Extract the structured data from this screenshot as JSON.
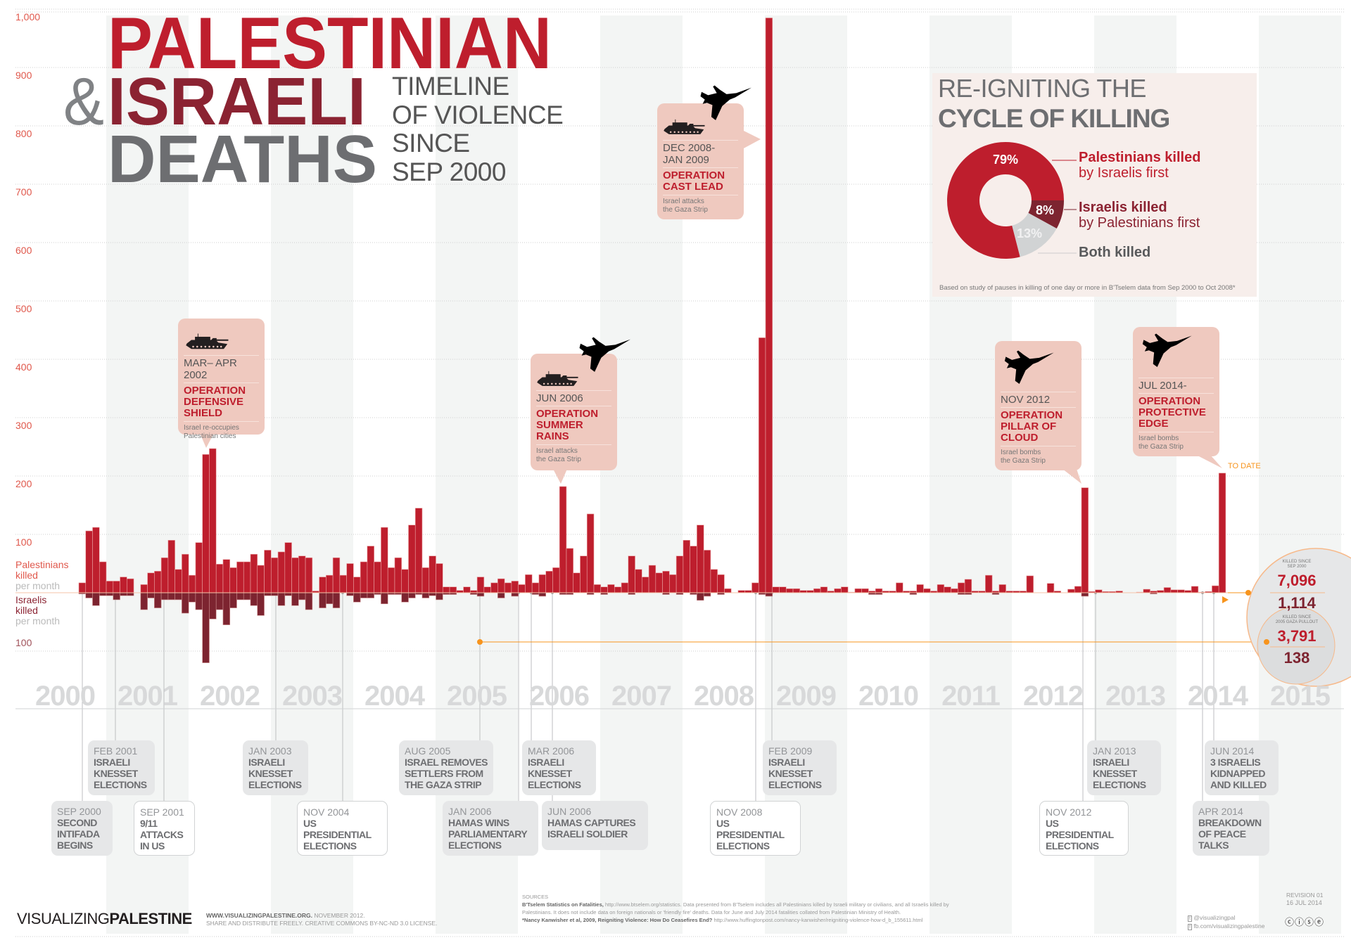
{
  "title": {
    "line1": "PALESTINIAN",
    "amp": "&",
    "line2": "ISRAELI",
    "line3": "DEATHS",
    "subtitle": [
      "TIMELINE",
      "OF VIOLENCE",
      "SINCE",
      "SEP 2000"
    ]
  },
  "colors": {
    "palestinian": "#be1e2d",
    "israeli": "#7d2430",
    "grey_text": "#6d6e71",
    "callout_bg": "#efc9bf",
    "accent_orange": "#f7941d",
    "both_killed": "#d1d3d4"
  },
  "chart_data": {
    "type": "bar",
    "start_month": "2000-09",
    "end_month": "2014-07",
    "interval": "month",
    "ylim": [
      -100,
      1000
    ],
    "grid": true,
    "y_tick_labels": [
      "1,000",
      "900",
      "800",
      "700",
      "600",
      "500",
      "400",
      "300",
      "200",
      "100"
    ],
    "y_tick_values": [
      1000,
      900,
      800,
      700,
      600,
      500,
      400,
      300,
      200,
      100
    ],
    "y_neg_tick_label": "100",
    "x_tick_labels": [
      "2000",
      "2001",
      "2002",
      "2003",
      "2004",
      "2005",
      "2006",
      "2007",
      "2008",
      "2009",
      "2010",
      "2011",
      "2012",
      "2013",
      "2014",
      "2015"
    ],
    "series": [
      {
        "name": "Palestinians killed per month",
        "label": "Palestinians\nkilled",
        "unit": "per month",
        "values": [
          17,
          106,
          112,
          53,
          20,
          20,
          27,
          24,
          0,
          14,
          34,
          37,
          60,
          90,
          40,
          66,
          30,
          86,
          237,
          247,
          49,
          57,
          43,
          53,
          53,
          66,
          47,
          73,
          60,
          70,
          86,
          60,
          63,
          60,
          3,
          27,
          30,
          60,
          30,
          50,
          27,
          53,
          80,
          53,
          112,
          43,
          60,
          40,
          116,
          145,
          43,
          63,
          50,
          10,
          10,
          4,
          10,
          4,
          27,
          10,
          17,
          24,
          17,
          20,
          14,
          31,
          17,
          31,
          37,
          43,
          182,
          76,
          34,
          63,
          135,
          14,
          10,
          14,
          10,
          17,
          63,
          40,
          27,
          47,
          34,
          37,
          31,
          63,
          90,
          80,
          116,
          73,
          40,
          31,
          7,
          0,
          4,
          4,
          17,
          437,
          985,
          10,
          10,
          7,
          7,
          4,
          4,
          7,
          10,
          3,
          7,
          10,
          1,
          7,
          7,
          3,
          7,
          3,
          3,
          17,
          3,
          3,
          14,
          7,
          3,
          14,
          10,
          7,
          17,
          23,
          3,
          3,
          30,
          3,
          14,
          3,
          3,
          3,
          29,
          0,
          0,
          16,
          3,
          0,
          6,
          11,
          180,
          2,
          5,
          2,
          2,
          3,
          0,
          0,
          1,
          6,
          3,
          4,
          9,
          5,
          5,
          4,
          11,
          1,
          2,
          12,
          205
        ]
      },
      {
        "name": "Israelis killed per month",
        "label": "Israelis\nkilled",
        "unit": "per month",
        "values": [
          2,
          9,
          22,
          5,
          5,
          12,
          5,
          5,
          0,
          29,
          9,
          26,
          12,
          12,
          12,
          35,
          16,
          29,
          120,
          45,
          29,
          55,
          26,
          12,
          12,
          22,
          39,
          5,
          5,
          22,
          5,
          22,
          12,
          29,
          0,
          26,
          19,
          26,
          0,
          5,
          16,
          9,
          9,
          3,
          19,
          3,
          3,
          16,
          9,
          3,
          9,
          5,
          12,
          3,
          3,
          0,
          0,
          3,
          6,
          0,
          0,
          9,
          0,
          6,
          0,
          0,
          3,
          6,
          0,
          0,
          3,
          3,
          0,
          0,
          3,
          0,
          3,
          0,
          0,
          0,
          3,
          0,
          0,
          0,
          0,
          3,
          0,
          3,
          0,
          3,
          13,
          6,
          0,
          3,
          0,
          0,
          0,
          0,
          0,
          3,
          6,
          0,
          0,
          0,
          0,
          0,
          0,
          0,
          0,
          0,
          0,
          0,
          0,
          0,
          0,
          3,
          3,
          0,
          0,
          0,
          0,
          3,
          0,
          0,
          0,
          0,
          0,
          0,
          3,
          3,
          0,
          0,
          0,
          3,
          0,
          0,
          0,
          0,
          0,
          0,
          0,
          0,
          0,
          0,
          0,
          0,
          6,
          0,
          0,
          0,
          0,
          0,
          0,
          0,
          0,
          0,
          2,
          0,
          0,
          0,
          0,
          0,
          0,
          0,
          0,
          0,
          0
        ]
      }
    ]
  },
  "callouts": [
    {
      "date": "MAR– APR 2002",
      "name": "OPERATION\nDEFENSIVE\nSHIELD",
      "desc": "Israel re-occupies\nPalestinian cities",
      "icons": [
        "tank-icon"
      ]
    },
    {
      "date": "JUN 2006",
      "name": "OPERATION\nSUMMER\nRAINS",
      "desc": "Israel attacks\nthe Gaza Strip",
      "icons": [
        "tank-icon",
        "fighter-jet-icon"
      ]
    },
    {
      "date": "DEC 2008-\nJAN 2009",
      "name": "OPERATION\nCAST LEAD",
      "desc": "Israel attacks\nthe Gaza Strip",
      "icons": [
        "tank-icon",
        "fighter-jet-icon"
      ]
    },
    {
      "date": "NOV 2012",
      "name": "OPERATION\nPILLAR OF\nCLOUD",
      "desc": "Israel bombs\nthe Gaza Strip",
      "icons": [
        "fighter-jet-icon"
      ]
    },
    {
      "date": "JUL 2014-",
      "name": "OPERATION\nPROTECTIVE\nEDGE",
      "desc": "Israel bombs\nthe Gaza Strip",
      "icons": [
        "fighter-jet-icon"
      ]
    }
  ],
  "to_date": "TO DATE",
  "events": [
    {
      "date": "SEP 2000",
      "title": "SECOND\nINTIFADA\nBEGINS"
    },
    {
      "date": "FEB 2001",
      "title": "ISRAELI\nKNESSET\nELECTIONS"
    },
    {
      "date": "SEP 2001",
      "title": "9/11\nATTACKS\nIN US"
    },
    {
      "date": "JAN 2003",
      "title": "ISRAELI\nKNESSET\nELECTIONS"
    },
    {
      "date": "NOV 2004",
      "title": "US\nPRESIDENTIAL\nELECTIONS"
    },
    {
      "date": "AUG 2005",
      "title": "ISRAEL REMOVES\nSETTLERS FROM\nTHE GAZA STRIP"
    },
    {
      "date": "JAN 2006",
      "title": "HAMAS WINS\nPARLIAMENTARY\nELECTIONS"
    },
    {
      "date": "MAR 2006",
      "title": "ISRAELI\nKNESSET\nELECTIONS"
    },
    {
      "date": "JUN 2006",
      "title": "HAMAS CAPTURES\nISRAELI SOLDIER"
    },
    {
      "date": "NOV 2008",
      "title": "US\nPRESIDENTIAL\nELECTIONS"
    },
    {
      "date": "FEB 2009",
      "title": "ISRAELI\nKNESSET\nELECTIONS"
    },
    {
      "date": "NOV 2012",
      "title": "US\nPRESIDENTIAL\nELECTIONS"
    },
    {
      "date": "JAN 2013",
      "title": "ISRAELI\nKNESSET\nELECTIONS"
    },
    {
      "date": "APR 2014",
      "title": "BREAKDOWN\nOF PEACE\nTALKS"
    },
    {
      "date": "JUN 2014",
      "title": "3 ISRAELIS\nKIDNAPPED\nAND KILLED"
    }
  ],
  "cycle": {
    "title1": "RE-IGNITING THE",
    "title2": "CYCLE OF KILLING",
    "slices": [
      {
        "label": "Palestinians killed",
        "sub": "by Israelis first",
        "value": 79,
        "pct_label": "79%",
        "color": "#be1e2d"
      },
      {
        "label": "Israelis killed",
        "sub": "by Palestinians first",
        "value": 8,
        "pct_label": "8%",
        "color": "#7d2430"
      },
      {
        "label": "Both killed",
        "sub": "",
        "value": 13,
        "pct_label": "13%",
        "color": "#d1d3d4"
      }
    ],
    "footnote": "Based on study of pauses in killing of one day or more in B'Tselem data from Sep 2000 to Oct 2008*"
  },
  "totals": {
    "since_2000_label": "KILLED SINCE\nSEP 2000",
    "since_2000_palestinians": "7,096",
    "since_2000_israelis": "1,114",
    "since_2005_label": "KILLED SINCE\n2005 GAZA PULLOUT",
    "since_2005_palestinians": "3,791",
    "since_2005_israelis": "138"
  },
  "footer": {
    "brand_light": "VISUALIZING",
    "brand_bold": "PALESTINE",
    "site": "WWW.VISUALIZINGPALESTINE.ORG.",
    "site_date": " NOVEMBER 2012.",
    "license": "SHARE AND DISTRIBUTE FREELY. CREATIVE COMMONS BY-NC-ND 3.0 LICENSE.",
    "sources_heading": "SOURCES",
    "source1_title": "B'Tselem Statistics on Fatalities,",
    "source1_text": " http://www.btselem.org/statistics. Data presented from B'Tselem includes all Palestinians killed by Israeli military or civilians, and all Israelis killed by",
    "source1_text2": "Palestinians. It does not include data on foreign nationals or 'friendly fire' deaths. Data for June and July 2014 fatalities collated from Palestinian Ministry of Health.",
    "source2_title": "*Nancy Kanwisher et al, 2009, Reigniting Violence: How Do Ceasefires End?",
    "source2_text": " http://www.huffingtonpost.com/nancy-kanwisher/reigniting-violence-how-d_b_155611.html",
    "twitter": "@visualizingpal",
    "facebook": "fb.com/visualizingpalestine",
    "revision": "REVISION 01",
    "revision_date": "16 JUL 2014"
  }
}
